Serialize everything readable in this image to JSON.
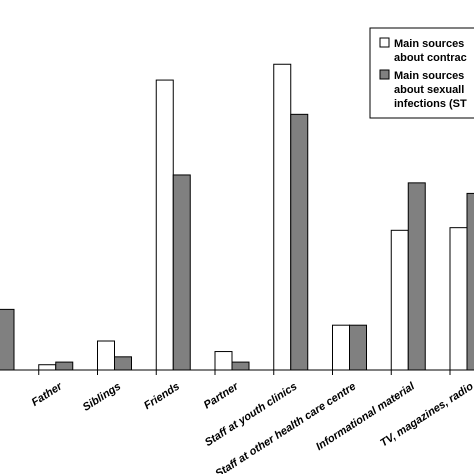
{
  "chart_data": {
    "type": "bar",
    "categories": [
      "",
      "Father",
      "Siblings",
      "Friends",
      "Partner",
      "Staff at youth clinics",
      "Staff at other health care centre",
      "Informational material",
      "TV, magazines, radio"
    ],
    "series": [
      {
        "name": "Main sources of information about contraception",
        "values": [
          null,
          1.0,
          5.5,
          55.0,
          3.5,
          58.0,
          8.5,
          26.5,
          27.0
        ],
        "color": "#ffffff"
      },
      {
        "name": "Main sources of information about sexually transmitted infections (STIs)",
        "values": [
          11.5,
          1.5,
          2.5,
          37.0,
          1.5,
          48.5,
          8.5,
          35.5,
          33.5
        ],
        "color": "#808080"
      }
    ],
    "legend": {
      "placement": "top-right",
      "entries": [
        {
          "lines": [
            "Main sources",
            "about contrac"
          ]
        },
        {
          "lines": [
            "Main sources",
            "about sexuall",
            "infections (ST"
          ]
        }
      ]
    },
    "ylim": [
      0,
      70
    ],
    "grid": false
  }
}
